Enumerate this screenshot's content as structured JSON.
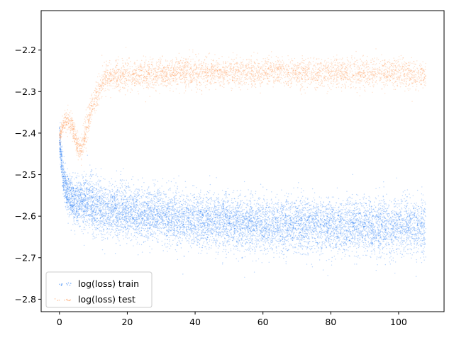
{
  "chart_data": {
    "type": "scatter",
    "title": "",
    "xlabel": "",
    "ylabel": "",
    "xlim": [
      -5.4,
      113.4
    ],
    "ylim": [
      -2.83,
      -2.105
    ],
    "x_ticks": [
      0,
      20,
      40,
      60,
      80,
      100
    ],
    "x_tick_labels": [
      "0",
      "20",
      "40",
      "60",
      "80",
      "100"
    ],
    "y_ticks": [
      -2.2,
      -2.3,
      -2.4,
      -2.5,
      -2.6,
      -2.7,
      -2.8
    ],
    "y_tick_labels": [
      "−2.2",
      "−2.3",
      "−2.4",
      "−2.5",
      "−2.6",
      "−2.7",
      "−2.8"
    ],
    "grid": false,
    "legend_position": "lower-left",
    "series": [
      {
        "name": "log(loss) train",
        "color": "#0a6cf5",
        "approx_points": 40000,
        "trend_x": [
          0,
          0.5,
          1,
          2,
          3,
          5,
          8,
          12,
          20,
          30,
          40,
          50,
          60,
          70,
          80,
          90,
          100,
          108
        ],
        "trend_y": [
          -2.41,
          -2.46,
          -2.5,
          -2.54,
          -2.555,
          -2.565,
          -2.57,
          -2.58,
          -2.59,
          -2.6,
          -2.61,
          -2.615,
          -2.62,
          -2.62,
          -2.625,
          -2.625,
          -2.625,
          -2.625
        ],
        "spread": 0.065
      },
      {
        "name": "log(loss) test",
        "color": "#ff8c40",
        "approx_points": 18000,
        "trend_x": [
          0,
          1,
          2,
          3,
          4,
          5,
          6,
          7,
          8,
          9,
          10,
          11,
          12,
          13,
          15,
          20,
          30,
          40,
          60,
          80,
          100,
          108
        ],
        "trend_y": [
          -2.41,
          -2.38,
          -2.37,
          -2.37,
          -2.39,
          -2.42,
          -2.44,
          -2.43,
          -2.39,
          -2.35,
          -2.33,
          -2.31,
          -2.29,
          -2.27,
          -2.265,
          -2.26,
          -2.255,
          -2.255,
          -2.255,
          -2.255,
          -2.255,
          -2.26
        ],
        "spread": 0.035
      }
    ]
  }
}
